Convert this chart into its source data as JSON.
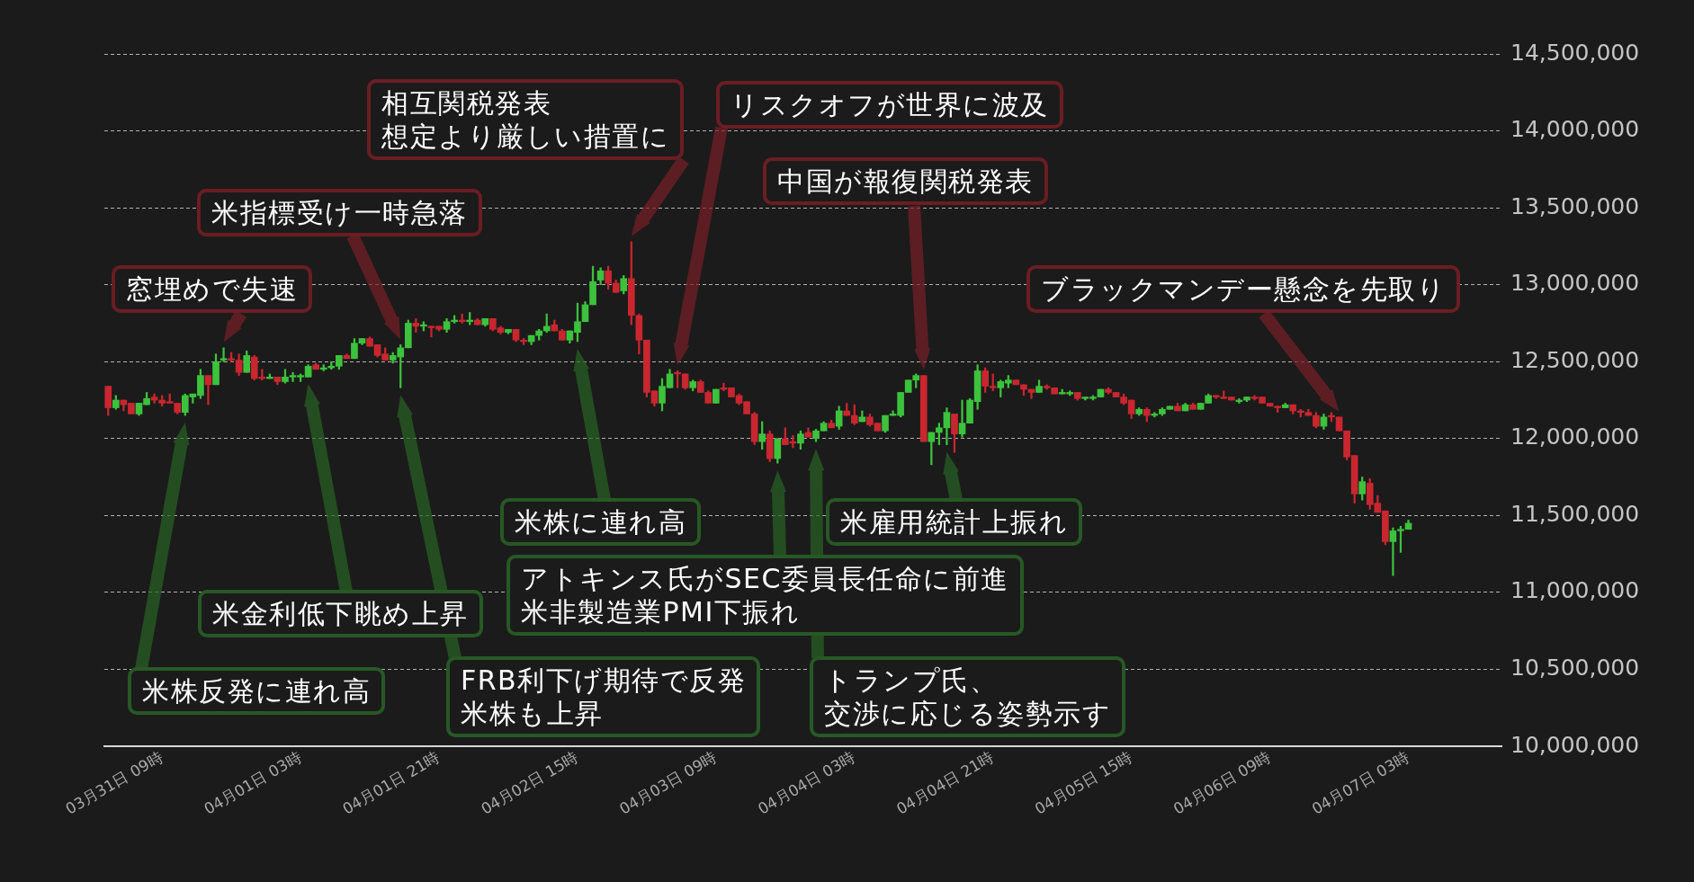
{
  "chart_data": {
    "type": "candlestick",
    "categories": [
      null,
      null,
      null,
      null,
      null,
      null,
      null,
      "03月31日 09時",
      null,
      null,
      null,
      null,
      null,
      null,
      null,
      null,
      null,
      null,
      null,
      null,
      null,
      null,
      null,
      null,
      null,
      "04月01日 03時",
      null,
      null,
      null,
      null,
      null,
      null,
      null,
      null,
      null,
      null,
      null,
      null,
      null,
      null,
      null,
      null,
      null,
      "04月01日 21時",
      null,
      null,
      null,
      null,
      null,
      null,
      null,
      null,
      null,
      null,
      null,
      null,
      null,
      null,
      null,
      null,
      null,
      "04月02日 15時",
      null,
      null,
      null,
      null,
      null,
      null,
      null,
      null,
      null,
      null,
      null,
      null,
      null,
      null,
      null,
      null,
      null,
      "04月03日 09時",
      null,
      null,
      null,
      null,
      null,
      null,
      null,
      null,
      null,
      null,
      null,
      null,
      null,
      null,
      null,
      null,
      null,
      "04月04日 03時",
      null,
      null,
      null,
      null,
      null,
      null,
      null,
      null,
      null,
      null,
      null,
      null,
      null,
      null,
      null,
      null,
      null,
      "04月04日 21時",
      null,
      null,
      null,
      null,
      null,
      null,
      null,
      null,
      null,
      null,
      null,
      null,
      null,
      null,
      null,
      null,
      null,
      "04月05日 15時",
      null,
      null,
      null,
      null,
      null,
      null,
      null,
      null,
      null,
      null,
      null,
      null,
      null,
      null,
      null,
      null,
      null,
      "04月06日 09時",
      null,
      null,
      null,
      null,
      null,
      null,
      null,
      null,
      null,
      null,
      null,
      null,
      null,
      null,
      null,
      null,
      null,
      "04月07日 03時"
    ],
    "ohlc": [
      [
        12340000,
        12340000,
        12150000,
        12200000
      ],
      [
        12200000,
        12280000,
        12190000,
        12250000
      ],
      [
        12250000,
        12250000,
        12180000,
        12220000
      ],
      [
        12230000,
        12230000,
        12160000,
        12160000
      ],
      [
        12160000,
        12230000,
        12150000,
        12230000
      ],
      [
        12220000,
        12300000,
        12220000,
        12260000
      ],
      [
        12270000,
        12290000,
        12230000,
        12250000
      ],
      [
        12250000,
        12280000,
        12210000,
        12230000
      ],
      [
        12240000,
        12290000,
        12230000,
        12230000
      ],
      [
        12230000,
        12230000,
        12160000,
        12170000
      ],
      [
        12170000,
        12290000,
        12150000,
        12280000
      ],
      [
        12270000,
        12290000,
        12230000,
        12290000
      ],
      [
        12280000,
        12450000,
        12260000,
        12410000
      ],
      [
        12410000,
        12410000,
        12220000,
        12350000
      ],
      [
        12350000,
        12550000,
        12350000,
        12500000
      ],
      [
        12510000,
        12590000,
        12500000,
        12520000
      ],
      [
        12520000,
        12560000,
        12500000,
        12510000
      ],
      [
        12510000,
        12550000,
        12410000,
        12430000
      ],
      [
        12430000,
        12570000,
        12430000,
        12540000
      ],
      [
        12530000,
        12540000,
        12380000,
        12390000
      ],
      [
        12400000,
        12450000,
        12380000,
        12390000
      ],
      [
        12390000,
        12420000,
        12390000,
        12400000
      ],
      [
        12400000,
        12400000,
        12350000,
        12370000
      ],
      [
        12370000,
        12450000,
        12360000,
        12400000
      ],
      [
        12400000,
        12430000,
        12370000,
        12410000
      ],
      [
        12400000,
        12420000,
        12370000,
        12410000
      ],
      [
        12400000,
        12480000,
        12400000,
        12470000
      ],
      [
        12480000,
        12490000,
        12450000,
        12450000
      ],
      [
        12450000,
        12480000,
        12440000,
        12460000
      ],
      [
        12460000,
        12500000,
        12450000,
        12470000
      ],
      [
        12470000,
        12540000,
        12450000,
        12540000
      ],
      [
        12540000,
        12550000,
        12520000,
        12520000
      ],
      [
        12520000,
        12650000,
        12520000,
        12620000
      ],
      [
        12620000,
        12650000,
        12610000,
        12650000
      ],
      [
        12650000,
        12660000,
        12600000,
        12600000
      ],
      [
        12610000,
        12610000,
        12530000,
        12540000
      ],
      [
        12550000,
        12590000,
        12510000,
        12510000
      ],
      [
        12510000,
        12560000,
        12490000,
        12540000
      ],
      [
        12530000,
        12610000,
        12330000,
        12590000
      ],
      [
        12590000,
        12770000,
        12590000,
        12750000
      ],
      [
        12750000,
        12780000,
        12690000,
        12730000
      ],
      [
        12730000,
        12760000,
        12700000,
        12740000
      ],
      [
        12730000,
        12730000,
        12660000,
        12720000
      ],
      [
        12730000,
        12730000,
        12700000,
        12710000
      ],
      [
        12710000,
        12780000,
        12690000,
        12760000
      ],
      [
        12760000,
        12800000,
        12750000,
        12770000
      ],
      [
        12770000,
        12810000,
        12750000,
        12760000
      ],
      [
        12760000,
        12820000,
        12740000,
        12770000
      ],
      [
        12770000,
        12780000,
        12740000,
        12740000
      ],
      [
        12740000,
        12780000,
        12730000,
        12780000
      ],
      [
        12780000,
        12780000,
        12700000,
        12710000
      ],
      [
        12720000,
        12730000,
        12680000,
        12690000
      ],
      [
        12690000,
        12710000,
        12680000,
        12710000
      ],
      [
        12710000,
        12710000,
        12630000,
        12640000
      ],
      [
        12640000,
        12650000,
        12610000,
        12630000
      ],
      [
        12630000,
        12670000,
        12610000,
        12670000
      ],
      [
        12670000,
        12710000,
        12640000,
        12700000
      ],
      [
        12700000,
        12810000,
        12690000,
        12730000
      ],
      [
        12740000,
        12770000,
        12700000,
        12700000
      ],
      [
        12700000,
        12710000,
        12640000,
        12640000
      ],
      [
        12640000,
        12700000,
        12620000,
        12700000
      ],
      [
        12690000,
        12880000,
        12630000,
        12760000
      ],
      [
        12760000,
        12890000,
        12760000,
        12870000
      ],
      [
        12870000,
        13120000,
        12870000,
        13020000
      ],
      [
        13030000,
        13110000,
        13000000,
        13090000
      ],
      [
        13090000,
        13120000,
        12970000,
        13010000
      ],
      [
        13010000,
        13030000,
        12950000,
        12950000
      ],
      [
        12960000,
        13060000,
        12940000,
        13040000
      ],
      [
        13040000,
        13280000,
        12740000,
        12800000
      ],
      [
        12800000,
        12810000,
        12550000,
        12640000
      ],
      [
        12640000,
        12640000,
        12270000,
        12300000
      ],
      [
        12310000,
        12310000,
        12210000,
        12230000
      ],
      [
        12230000,
        12390000,
        12180000,
        12340000
      ],
      [
        12330000,
        12450000,
        12330000,
        12420000
      ],
      [
        12430000,
        12440000,
        12330000,
        12420000
      ],
      [
        12420000,
        12420000,
        12320000,
        12330000
      ],
      [
        12330000,
        12380000,
        12310000,
        12370000
      ],
      [
        12370000,
        12380000,
        12300000,
        12300000
      ],
      [
        12300000,
        12310000,
        12230000,
        12230000
      ],
      [
        12230000,
        12320000,
        12230000,
        12320000
      ],
      [
        12330000,
        12360000,
        12310000,
        12320000
      ],
      [
        12330000,
        12330000,
        12270000,
        12270000
      ],
      [
        12280000,
        12290000,
        12220000,
        12230000
      ],
      [
        12240000,
        12240000,
        12160000,
        12160000
      ],
      [
        12160000,
        12170000,
        11960000,
        11980000
      ],
      [
        11980000,
        12110000,
        11930000,
        12030000
      ],
      [
        12030000,
        12050000,
        11850000,
        11870000
      ],
      [
        11870000,
        12000000,
        11840000,
        12000000
      ],
      [
        12000000,
        12070000,
        11960000,
        11960000
      ],
      [
        11980000,
        12020000,
        11940000,
        11970000
      ],
      [
        11970000,
        12050000,
        11930000,
        12030000
      ],
      [
        12040000,
        12070000,
        12010000,
        12010000
      ],
      [
        12000000,
        12060000,
        11980000,
        12050000
      ],
      [
        12050000,
        12110000,
        12050000,
        12100000
      ],
      [
        12100000,
        12120000,
        12070000,
        12070000
      ],
      [
        12080000,
        12210000,
        12060000,
        12180000
      ],
      [
        12180000,
        12230000,
        12150000,
        12150000
      ],
      [
        12150000,
        12220000,
        12090000,
        12100000
      ],
      [
        12110000,
        12180000,
        12110000,
        12140000
      ],
      [
        12140000,
        12160000,
        12080000,
        12090000
      ],
      [
        12100000,
        12100000,
        12050000,
        12050000
      ],
      [
        12050000,
        12150000,
        12040000,
        12150000
      ],
      [
        12150000,
        12180000,
        12150000,
        12160000
      ],
      [
        12150000,
        12300000,
        12140000,
        12300000
      ],
      [
        12300000,
        12380000,
        12300000,
        12380000
      ],
      [
        12380000,
        12420000,
        12330000,
        12410000
      ],
      [
        12410000,
        12410000,
        11980000,
        11980000
      ],
      [
        11980000,
        12040000,
        11830000,
        12040000
      ],
      [
        12040000,
        12100000,
        11960000,
        12070000
      ],
      [
        12070000,
        12200000,
        11960000,
        12170000
      ],
      [
        12160000,
        12160000,
        11910000,
        12030000
      ],
      [
        12030000,
        12250000,
        12010000,
        12100000
      ],
      [
        12100000,
        12260000,
        12100000,
        12250000
      ],
      [
        12240000,
        12480000,
        12190000,
        12440000
      ],
      [
        12440000,
        12460000,
        12300000,
        12340000
      ],
      [
        12340000,
        12420000,
        12310000,
        12330000
      ],
      [
        12330000,
        12380000,
        12270000,
        12370000
      ],
      [
        12360000,
        12410000,
        12330000,
        12380000
      ],
      [
        12380000,
        12380000,
        12350000,
        12350000
      ],
      [
        12350000,
        12350000,
        12280000,
        12320000
      ],
      [
        12320000,
        12320000,
        12260000,
        12300000
      ],
      [
        12300000,
        12380000,
        12300000,
        12340000
      ],
      [
        12340000,
        12350000,
        12320000,
        12330000
      ],
      [
        12330000,
        12330000,
        12290000,
        12290000
      ],
      [
        12290000,
        12320000,
        12290000,
        12300000
      ],
      [
        12290000,
        12310000,
        12280000,
        12300000
      ],
      [
        12300000,
        12300000,
        12250000,
        12260000
      ],
      [
        12260000,
        12270000,
        12250000,
        12270000
      ],
      [
        12260000,
        12280000,
        12250000,
        12270000
      ],
      [
        12270000,
        12320000,
        12270000,
        12320000
      ],
      [
        12320000,
        12330000,
        12290000,
        12300000
      ],
      [
        12300000,
        12300000,
        12270000,
        12270000
      ],
      [
        12270000,
        12290000,
        12220000,
        12230000
      ],
      [
        12250000,
        12250000,
        12130000,
        12160000
      ],
      [
        12160000,
        12200000,
        12150000,
        12190000
      ],
      [
        12190000,
        12200000,
        12110000,
        12150000
      ],
      [
        12150000,
        12170000,
        12140000,
        12160000
      ],
      [
        12160000,
        12200000,
        12150000,
        12190000
      ],
      [
        12190000,
        12210000,
        12190000,
        12210000
      ],
      [
        12210000,
        12230000,
        12180000,
        12180000
      ],
      [
        12180000,
        12230000,
        12180000,
        12220000
      ],
      [
        12220000,
        12230000,
        12190000,
        12190000
      ],
      [
        12190000,
        12230000,
        12190000,
        12230000
      ],
      [
        12230000,
        12290000,
        12230000,
        12280000
      ],
      [
        12280000,
        12280000,
        12260000,
        12270000
      ],
      [
        12270000,
        12310000,
        12260000,
        12260000
      ],
      [
        12270000,
        12270000,
        12250000,
        12250000
      ],
      [
        12240000,
        12260000,
        12230000,
        12250000
      ],
      [
        12250000,
        12270000,
        12240000,
        12270000
      ],
      [
        12270000,
        12280000,
        12250000,
        12260000
      ],
      [
        12270000,
        12270000,
        12230000,
        12230000
      ],
      [
        12230000,
        12230000,
        12210000,
        12210000
      ],
      [
        12210000,
        12210000,
        12170000,
        12200000
      ],
      [
        12200000,
        12230000,
        12200000,
        12220000
      ],
      [
        12220000,
        12220000,
        12160000,
        12180000
      ],
      [
        12180000,
        12190000,
        12140000,
        12170000
      ],
      [
        12170000,
        12190000,
        12150000,
        12150000
      ],
      [
        12150000,
        12170000,
        12070000,
        12080000
      ],
      [
        12080000,
        12160000,
        12060000,
        12140000
      ],
      [
        12150000,
        12170000,
        12110000,
        12140000
      ],
      [
        12140000,
        12140000,
        12050000,
        12050000
      ],
      [
        12050000,
        12050000,
        11860000,
        11880000
      ],
      [
        11890000,
        11890000,
        11580000,
        11640000
      ],
      [
        11640000,
        11750000,
        11600000,
        11720000
      ],
      [
        11710000,
        11740000,
        11540000,
        11570000
      ],
      [
        11580000,
        11630000,
        11520000,
        11520000
      ],
      [
        11530000,
        11530000,
        11310000,
        11330000
      ],
      [
        11330000,
        11420000,
        11110000,
        11400000
      ],
      [
        11400000,
        11430000,
        11260000,
        11410000
      ],
      [
        11410000,
        11470000,
        11410000,
        11450000
      ]
    ],
    "colors": [
      "#c9262f",
      "#3cc23c",
      "#c9262f",
      "#c9262f",
      "#3cc23c",
      "#3cc23c",
      "#c9262f",
      "#c9262f",
      "#c9262f",
      "#c9262f",
      "#3cc23c",
      "#3cc23c",
      "#3cc23c",
      "#c9262f",
      "#3cc23c",
      "#3cc23c",
      "#c9262f",
      "#c9262f",
      "#3cc23c",
      "#c9262f",
      "#c9262f",
      "#3cc23c",
      "#c9262f",
      "#3cc23c",
      "#3cc23c",
      "#3cc23c",
      "#3cc23c",
      "#c9262f",
      "#3cc23c",
      "#3cc23c",
      "#3cc23c",
      "#c9262f",
      "#3cc23c",
      "#3cc23c",
      "#c9262f",
      "#c9262f",
      "#c9262f",
      "#3cc23c",
      "#3cc23c",
      "#3cc23c",
      "#c9262f",
      "#3cc23c",
      "#c9262f",
      "#c9262f",
      "#3cc23c",
      "#3cc23c",
      "#c9262f",
      "#3cc23c",
      "#c9262f",
      "#3cc23c",
      "#c9262f",
      "#c9262f",
      "#3cc23c",
      "#c9262f",
      "#c9262f",
      "#3cc23c",
      "#3cc23c",
      "#3cc23c",
      "#c9262f",
      "#c9262f",
      "#3cc23c",
      "#3cc23c",
      "#3cc23c",
      "#3cc23c",
      "#3cc23c",
      "#c9262f",
      "#c9262f",
      "#3cc23c",
      "#c9262f",
      "#c9262f",
      "#c9262f",
      "#c9262f",
      "#3cc23c",
      "#3cc23c",
      "#c9262f",
      "#c9262f",
      "#3cc23c",
      "#c9262f",
      "#c9262f",
      "#3cc23c",
      "#c9262f",
      "#c9262f",
      "#c9262f",
      "#c9262f",
      "#c9262f",
      "#3cc23c",
      "#c9262f",
      "#3cc23c",
      "#c9262f",
      "#c9262f",
      "#3cc23c",
      "#c9262f",
      "#3cc23c",
      "#3cc23c",
      "#c9262f",
      "#3cc23c",
      "#c9262f",
      "#c9262f",
      "#3cc23c",
      "#c9262f",
      "#c9262f",
      "#3cc23c",
      "#3cc23c",
      "#3cc23c",
      "#3cc23c",
      "#3cc23c",
      "#c9262f",
      "#3cc23c",
      "#3cc23c",
      "#3cc23c",
      "#c9262f",
      "#3cc23c",
      "#3cc23c",
      "#3cc23c",
      "#c9262f",
      "#c9262f",
      "#3cc23c",
      "#3cc23c",
      "#c9262f",
      "#c9262f",
      "#c9262f",
      "#3cc23c",
      "#c9262f",
      "#c9262f",
      "#3cc23c",
      "#3cc23c",
      "#c9262f",
      "#3cc23c",
      "#3cc23c",
      "#3cc23c",
      "#c9262f",
      "#c9262f",
      "#c9262f",
      "#c9262f",
      "#3cc23c",
      "#c9262f",
      "#3cc23c",
      "#3cc23c",
      "#3cc23c",
      "#c9262f",
      "#3cc23c",
      "#c9262f",
      "#3cc23c",
      "#3cc23c",
      "#c9262f",
      "#c9262f",
      "#c9262f",
      "#3cc23c",
      "#3cc23c",
      "#c9262f",
      "#c9262f",
      "#c9262f",
      "#c9262f",
      "#3cc23c",
      "#c9262f",
      "#c9262f",
      "#c9262f",
      "#c9262f",
      "#3cc23c",
      "#c9262f",
      "#c9262f",
      "#c9262f",
      "#c9262f",
      "#3cc23c",
      "#c9262f",
      "#c9262f",
      "#c9262f",
      "#3cc23c",
      "#3cc23c",
      "#3cc23c"
    ],
    "ylim": [
      10000000,
      14500000
    ],
    "yticks": [
      {
        "value": 10000000,
        "label": "10,000,000"
      },
      {
        "value": 10500000,
        "label": "10,500,000"
      },
      {
        "value": 11000000,
        "label": "11,000,000"
      },
      {
        "value": 11500000,
        "label": "11,500,000"
      },
      {
        "value": 12000000,
        "label": "12,000,000"
      },
      {
        "value": 12500000,
        "label": "12,500,000"
      },
      {
        "value": 13000000,
        "label": "13,000,000"
      },
      {
        "value": 13500000,
        "label": "13,500,000"
      },
      {
        "value": 14000000,
        "label": "14,000,000"
      },
      {
        "value": 14500000,
        "label": "14,500,000"
      }
    ],
    "grid": "y",
    "annotations": [
      "相互関税発表想定より厳しい措置に",
      "リスクオフが世界に波及",
      "中国が報復関税発表",
      "ブラックマンデー懸念を先取り",
      "米指標受け一時急落",
      "窓埋めで失速",
      "米株反発に連れ高",
      "米金利低下眺め上昇",
      "FRB利下げ期待で反発米株も上昇",
      "米株に連れ高",
      "アトキンス氏がSEC委員長任命に前進米非製造業PMI下振れ",
      "トランプ氏、交渉に応じる姿勢示す",
      "米雇用統計上振れ"
    ]
  }
}
